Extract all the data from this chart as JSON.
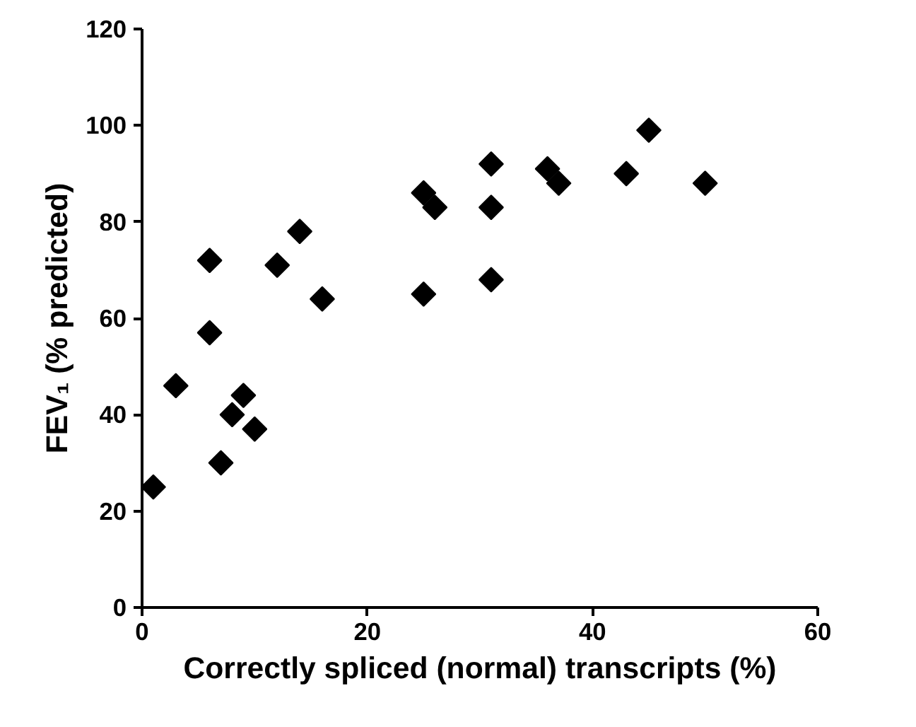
{
  "chart_data": {
    "type": "scatter",
    "xlabel": "Correctly spliced (normal) transcripts (%)",
    "ylabel": "FEV₁ (% predicted)",
    "x": [
      1,
      3,
      6,
      6,
      7,
      8,
      9,
      10,
      12,
      14,
      16,
      25,
      25,
      26,
      31,
      31,
      31,
      36,
      37,
      43,
      45,
      50
    ],
    "series": [
      {
        "color": "#000000",
        "values": [
          25,
          46,
          72,
          57,
          30,
          40,
          44,
          37,
          71,
          78,
          64,
          65,
          86,
          83,
          92,
          83,
          68,
          91,
          88,
          90,
          99,
          88
        ]
      }
    ],
    "xlim": [
      0,
      60
    ],
    "xticks": [
      0,
      20,
      40,
      60
    ],
    "ylim": [
      0,
      120
    ],
    "yticks": [
      0,
      20,
      40,
      60,
      80,
      100,
      120
    ],
    "marker": "diamond"
  }
}
